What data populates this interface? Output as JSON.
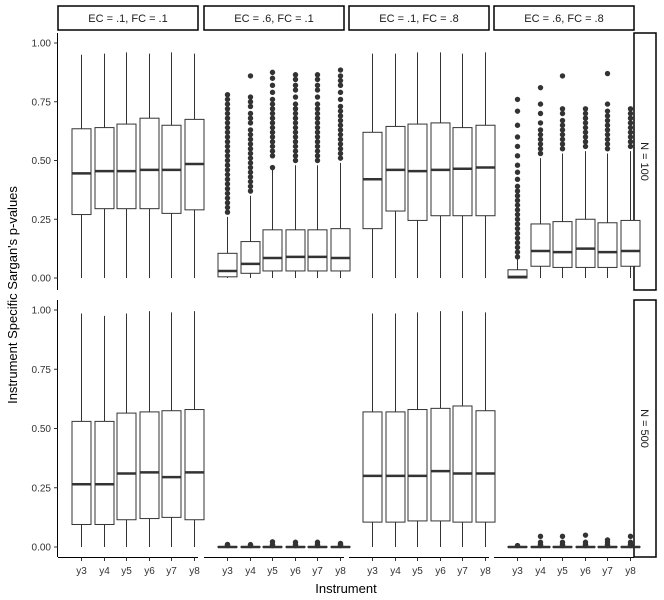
{
  "chart_data": {
    "type": "boxplot",
    "title": "",
    "xlabel": "Instrument",
    "ylabel": "Instrument Specific Sargan's p-values",
    "categories": [
      "y3",
      "y4",
      "y5",
      "y6",
      "y7",
      "y8"
    ],
    "ylim": [
      0,
      1
    ],
    "yticks": [
      "0.00",
      "0.25",
      "0.50",
      "0.75",
      "1.00"
    ],
    "ytick_values": [
      0,
      0.25,
      0.5,
      0.75,
      1.0
    ],
    "col_facets": [
      "EC = .1, FC = .1",
      "EC = .6, FC = .1",
      "EC = .1, FC = .8",
      "EC = .6, FC = .8"
    ],
    "row_facets": [
      "N = 100",
      "N = 500"
    ],
    "panels": [
      {
        "row": 0,
        "col": 0,
        "boxes": [
          {
            "q1": 0.27,
            "median": 0.445,
            "q3": 0.635,
            "lo": 0.0,
            "hi": 0.95,
            "outliers": []
          },
          {
            "q1": 0.295,
            "median": 0.455,
            "q3": 0.64,
            "lo": 0.0,
            "hi": 0.955,
            "outliers": []
          },
          {
            "q1": 0.295,
            "median": 0.455,
            "q3": 0.655,
            "lo": 0.0,
            "hi": 0.96,
            "outliers": []
          },
          {
            "q1": 0.295,
            "median": 0.46,
            "q3": 0.68,
            "lo": 0.0,
            "hi": 0.955,
            "outliers": []
          },
          {
            "q1": 0.275,
            "median": 0.46,
            "q3": 0.65,
            "lo": 0.0,
            "hi": 0.96,
            "outliers": []
          },
          {
            "q1": 0.29,
            "median": 0.485,
            "q3": 0.675,
            "lo": 0.0,
            "hi": 0.955,
            "outliers": []
          }
        ]
      },
      {
        "row": 0,
        "col": 1,
        "boxes": [
          {
            "q1": 0.005,
            "median": 0.03,
            "q3": 0.105,
            "lo": 0.0,
            "hi": 0.26,
            "outliers": [
              0.28,
              0.3,
              0.32,
              0.34,
              0.36,
              0.38,
              0.4,
              0.42,
              0.44,
              0.46,
              0.48,
              0.5,
              0.52,
              0.54,
              0.56,
              0.58,
              0.6,
              0.62,
              0.64,
              0.66,
              0.68,
              0.7,
              0.72,
              0.74,
              0.76,
              0.78
            ]
          },
          {
            "q1": 0.02,
            "median": 0.06,
            "q3": 0.155,
            "lo": 0.0,
            "hi": 0.35,
            "outliers": [
              0.37,
              0.39,
              0.41,
              0.43,
              0.45,
              0.47,
              0.49,
              0.51,
              0.53,
              0.55,
              0.57,
              0.59,
              0.61,
              0.63,
              0.66,
              0.68,
              0.7,
              0.73,
              0.75,
              0.77,
              0.86
            ]
          },
          {
            "q1": 0.03,
            "median": 0.085,
            "q3": 0.205,
            "lo": 0.0,
            "hi": 0.46,
            "outliers": [
              0.47,
              0.52,
              0.54,
              0.56,
              0.58,
              0.6,
              0.62,
              0.64,
              0.66,
              0.68,
              0.7,
              0.72,
              0.74,
              0.76,
              0.79,
              0.82,
              0.85,
              0.875
            ]
          },
          {
            "q1": 0.03,
            "median": 0.09,
            "q3": 0.205,
            "lo": 0.0,
            "hi": 0.48,
            "outliers": [
              0.5,
              0.52,
              0.54,
              0.56,
              0.58,
              0.6,
              0.62,
              0.64,
              0.66,
              0.68,
              0.7,
              0.72,
              0.74,
              0.77,
              0.8,
              0.82,
              0.845,
              0.865
            ]
          },
          {
            "q1": 0.03,
            "median": 0.09,
            "q3": 0.205,
            "lo": 0.0,
            "hi": 0.48,
            "outliers": [
              0.5,
              0.52,
              0.54,
              0.56,
              0.58,
              0.6,
              0.62,
              0.64,
              0.66,
              0.68,
              0.7,
              0.72,
              0.74,
              0.77,
              0.8,
              0.82,
              0.845,
              0.865
            ]
          },
          {
            "q1": 0.03,
            "median": 0.085,
            "q3": 0.21,
            "lo": 0.0,
            "hi": 0.49,
            "outliers": [
              0.51,
              0.53,
              0.55,
              0.57,
              0.59,
              0.61,
              0.63,
              0.65,
              0.67,
              0.69,
              0.71,
              0.73,
              0.76,
              0.79,
              0.82,
              0.84,
              0.86,
              0.885
            ]
          }
        ]
      },
      {
        "row": 0,
        "col": 2,
        "boxes": [
          {
            "q1": 0.21,
            "median": 0.42,
            "q3": 0.62,
            "lo": 0.0,
            "hi": 0.955,
            "outliers": []
          },
          {
            "q1": 0.285,
            "median": 0.46,
            "q3": 0.645,
            "lo": 0.0,
            "hi": 0.955,
            "outliers": []
          },
          {
            "q1": 0.245,
            "median": 0.455,
            "q3": 0.655,
            "lo": 0.0,
            "hi": 0.96,
            "outliers": []
          },
          {
            "q1": 0.265,
            "median": 0.46,
            "q3": 0.66,
            "lo": 0.0,
            "hi": 0.96,
            "outliers": []
          },
          {
            "q1": 0.265,
            "median": 0.465,
            "q3": 0.64,
            "lo": 0.0,
            "hi": 0.955,
            "outliers": []
          },
          {
            "q1": 0.265,
            "median": 0.47,
            "q3": 0.65,
            "lo": 0.0,
            "hi": 0.96,
            "outliers": []
          }
        ]
      },
      {
        "row": 0,
        "col": 3,
        "boxes": [
          {
            "q1": 0.0,
            "median": 0.005,
            "q3": 0.035,
            "lo": 0.0,
            "hi": 0.08,
            "outliers": [
              0.09,
              0.11,
              0.13,
              0.15,
              0.17,
              0.19,
              0.21,
              0.23,
              0.25,
              0.27,
              0.29,
              0.31,
              0.33,
              0.35,
              0.37,
              0.39,
              0.42,
              0.45,
              0.48,
              0.52,
              0.56,
              0.6,
              0.65,
              0.71,
              0.76
            ]
          },
          {
            "q1": 0.05,
            "median": 0.115,
            "q3": 0.23,
            "lo": 0.0,
            "hi": 0.51,
            "outliers": [
              0.53,
              0.55,
              0.57,
              0.59,
              0.61,
              0.63,
              0.66,
              0.7,
              0.74,
              0.81
            ]
          },
          {
            "q1": 0.045,
            "median": 0.11,
            "q3": 0.24,
            "lo": 0.0,
            "hi": 0.53,
            "outliers": [
              0.55,
              0.57,
              0.59,
              0.61,
              0.63,
              0.65,
              0.67,
              0.7,
              0.72,
              0.86
            ]
          },
          {
            "q1": 0.045,
            "median": 0.125,
            "q3": 0.25,
            "lo": 0.0,
            "hi": 0.54,
            "outliers": [
              0.56,
              0.58,
              0.6,
              0.62,
              0.64,
              0.66,
              0.68,
              0.7,
              0.72
            ]
          },
          {
            "q1": 0.045,
            "median": 0.11,
            "q3": 0.235,
            "lo": 0.0,
            "hi": 0.53,
            "outliers": [
              0.55,
              0.57,
              0.59,
              0.61,
              0.63,
              0.65,
              0.67,
              0.69,
              0.71,
              0.74,
              0.87
            ]
          },
          {
            "q1": 0.05,
            "median": 0.115,
            "q3": 0.245,
            "lo": 0.0,
            "hi": 0.54,
            "outliers": [
              0.56,
              0.58,
              0.6,
              0.62,
              0.64,
              0.66,
              0.68,
              0.7,
              0.72
            ]
          }
        ]
      },
      {
        "row": 1,
        "col": 0,
        "boxes": [
          {
            "q1": 0.095,
            "median": 0.265,
            "q3": 0.53,
            "lo": 0.0,
            "hi": 0.985,
            "outliers": []
          },
          {
            "q1": 0.095,
            "median": 0.265,
            "q3": 0.53,
            "lo": 0.0,
            "hi": 0.975,
            "outliers": []
          },
          {
            "q1": 0.115,
            "median": 0.31,
            "q3": 0.565,
            "lo": 0.0,
            "hi": 0.985,
            "outliers": []
          },
          {
            "q1": 0.12,
            "median": 0.315,
            "q3": 0.57,
            "lo": 0.0,
            "hi": 0.995,
            "outliers": []
          },
          {
            "q1": 0.125,
            "median": 0.295,
            "q3": 0.575,
            "lo": 0.0,
            "hi": 0.99,
            "outliers": []
          },
          {
            "q1": 0.115,
            "median": 0.315,
            "q3": 0.58,
            "lo": 0.0,
            "hi": 0.995,
            "outliers": []
          }
        ]
      },
      {
        "row": 1,
        "col": 1,
        "boxes": [
          {
            "q1": 0.0,
            "median": 0.0,
            "q3": 0.002,
            "lo": 0.0,
            "hi": 0.004,
            "outliers": [
              0.006,
              0.008,
              0.011
            ]
          },
          {
            "q1": 0.0,
            "median": 0.0,
            "q3": 0.002,
            "lo": 0.0,
            "hi": 0.004,
            "outliers": [
              0.006,
              0.01
            ]
          },
          {
            "q1": 0.0,
            "median": 0.0,
            "q3": 0.002,
            "lo": 0.0,
            "hi": 0.004,
            "outliers": [
              0.006,
              0.01,
              0.022
            ]
          },
          {
            "q1": 0.0,
            "median": 0.0,
            "q3": 0.002,
            "lo": 0.0,
            "hi": 0.004,
            "outliers": [
              0.006,
              0.01,
              0.02
            ]
          },
          {
            "q1": 0.0,
            "median": 0.0,
            "q3": 0.002,
            "lo": 0.0,
            "hi": 0.004,
            "outliers": [
              0.006,
              0.01,
              0.02
            ]
          },
          {
            "q1": 0.0,
            "median": 0.0,
            "q3": 0.002,
            "lo": 0.0,
            "hi": 0.004,
            "outliers": [
              0.006,
              0.01,
              0.015
            ]
          }
        ]
      },
      {
        "row": 1,
        "col": 2,
        "boxes": [
          {
            "q1": 0.105,
            "median": 0.3,
            "q3": 0.57,
            "lo": 0.0,
            "hi": 0.985,
            "outliers": []
          },
          {
            "q1": 0.105,
            "median": 0.3,
            "q3": 0.57,
            "lo": 0.0,
            "hi": 0.985,
            "outliers": []
          },
          {
            "q1": 0.11,
            "median": 0.3,
            "q3": 0.58,
            "lo": 0.0,
            "hi": 0.99,
            "outliers": []
          },
          {
            "q1": 0.11,
            "median": 0.32,
            "q3": 0.585,
            "lo": 0.0,
            "hi": 0.995,
            "outliers": []
          },
          {
            "q1": 0.105,
            "median": 0.31,
            "q3": 0.595,
            "lo": 0.0,
            "hi": 0.995,
            "outliers": []
          },
          {
            "q1": 0.105,
            "median": 0.31,
            "q3": 0.575,
            "lo": 0.0,
            "hi": 0.99,
            "outliers": []
          }
        ]
      },
      {
        "row": 1,
        "col": 3,
        "boxes": [
          {
            "q1": 0.0,
            "median": 0.0,
            "q3": 0.002,
            "lo": 0.0,
            "hi": 0.004,
            "outliers": [
              0.006
            ]
          },
          {
            "q1": 0.0,
            "median": 0.0,
            "q3": 0.002,
            "lo": 0.0,
            "hi": 0.004,
            "outliers": [
              0.006,
              0.01,
              0.02,
              0.045
            ]
          },
          {
            "q1": 0.0,
            "median": 0.0,
            "q3": 0.002,
            "lo": 0.0,
            "hi": 0.004,
            "outliers": [
              0.006,
              0.01,
              0.02,
              0.045
            ]
          },
          {
            "q1": 0.0,
            "median": 0.0,
            "q3": 0.002,
            "lo": 0.0,
            "hi": 0.004,
            "outliers": [
              0.006,
              0.01,
              0.02,
              0.05
            ]
          },
          {
            "q1": 0.0,
            "median": 0.0,
            "q3": 0.002,
            "lo": 0.0,
            "hi": 0.004,
            "outliers": [
              0.006,
              0.01,
              0.02,
              0.03
            ]
          },
          {
            "q1": 0.0,
            "median": 0.0,
            "q3": 0.002,
            "lo": 0.0,
            "hi": 0.004,
            "outliers": [
              0.006,
              0.01,
              0.02,
              0.045
            ]
          }
        ]
      }
    ]
  }
}
